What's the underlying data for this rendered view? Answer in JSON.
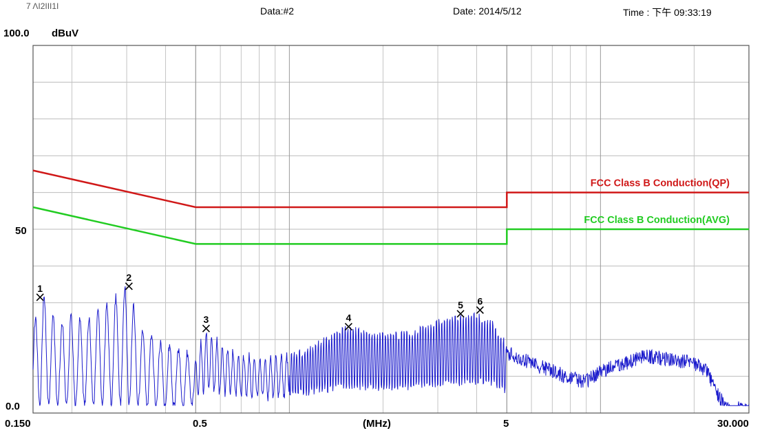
{
  "header": {
    "id": "7 ΛΙ2ΙΙΙ1Ι",
    "data": "Data:#2",
    "date": "Date: 2014/5/12",
    "time": "Time : 下午  09:33:19"
  },
  "chart_data": {
    "type": "line",
    "ylabel": "dBuV",
    "xlabel": "(MHz)",
    "x_scale": "log",
    "xlim": [
      0.15,
      30
    ],
    "ylim": [
      0,
      100
    ],
    "grid": true,
    "y_tick_labels": [
      "100.0",
      "50",
      "0.0"
    ],
    "x_tick_labels": [
      "0.150",
      "0.5",
      "(MHz)",
      "5",
      "30.000"
    ],
    "colors": {
      "qp": "#d01818",
      "avg": "#22cc22",
      "trace": "#1a1acc"
    },
    "limit_lines": [
      {
        "name": "FCC Class B Conduction(QP)",
        "points": [
          [
            0.15,
            66
          ],
          [
            0.5,
            56
          ],
          [
            5,
            56
          ],
          [
            5,
            60
          ],
          [
            30,
            60
          ]
        ]
      },
      {
        "name": "FCC Class B Conduction(AVG)",
        "points": [
          [
            0.15,
            56
          ],
          [
            0.5,
            46
          ],
          [
            5,
            46
          ],
          [
            5,
            50
          ],
          [
            30,
            50
          ]
        ]
      }
    ],
    "trace_envelope": [
      [
        0.15,
        24
      ],
      [
        0.16,
        34
      ],
      [
        0.18,
        25
      ],
      [
        0.2,
        28
      ],
      [
        0.22,
        26
      ],
      [
        0.25,
        30
      ],
      [
        0.28,
        33
      ],
      [
        0.3,
        36
      ],
      [
        0.33,
        25
      ],
      [
        0.36,
        22
      ],
      [
        0.4,
        20
      ],
      [
        0.45,
        18
      ],
      [
        0.5,
        17
      ],
      [
        0.54,
        24
      ],
      [
        0.6,
        20
      ],
      [
        0.7,
        17
      ],
      [
        0.8,
        16
      ],
      [
        1.0,
        17
      ],
      [
        1.2,
        20
      ],
      [
        1.5,
        25
      ],
      [
        1.8,
        24
      ],
      [
        2.0,
        23
      ],
      [
        2.5,
        24
      ],
      [
        3.0,
        27
      ],
      [
        3.5,
        28
      ],
      [
        4.0,
        29
      ],
      [
        4.5,
        27
      ],
      [
        5.0,
        20
      ],
      [
        6.0,
        17
      ],
      [
        7.0,
        15
      ],
      [
        8.0,
        13
      ],
      [
        9.0,
        12
      ],
      [
        10.0,
        15
      ],
      [
        12.0,
        17
      ],
      [
        14.0,
        19
      ],
      [
        17.0,
        18
      ],
      [
        20.0,
        17
      ],
      [
        22.0,
        15
      ],
      [
        24.0,
        8
      ],
      [
        26.0,
        4
      ],
      [
        28.0,
        5
      ],
      [
        30.0,
        4
      ]
    ],
    "trace_floor": 2,
    "markers": [
      {
        "label": "1",
        "freq": 0.158,
        "level": 31.5
      },
      {
        "label": "2",
        "freq": 0.305,
        "level": 34.5
      },
      {
        "label": "3",
        "freq": 0.54,
        "level": 23.0
      },
      {
        "label": "4",
        "freq": 1.55,
        "level": 23.5
      },
      {
        "label": "5",
        "freq": 3.55,
        "level": 27.0
      },
      {
        "label": "6",
        "freq": 4.1,
        "level": 28.0
      }
    ]
  }
}
